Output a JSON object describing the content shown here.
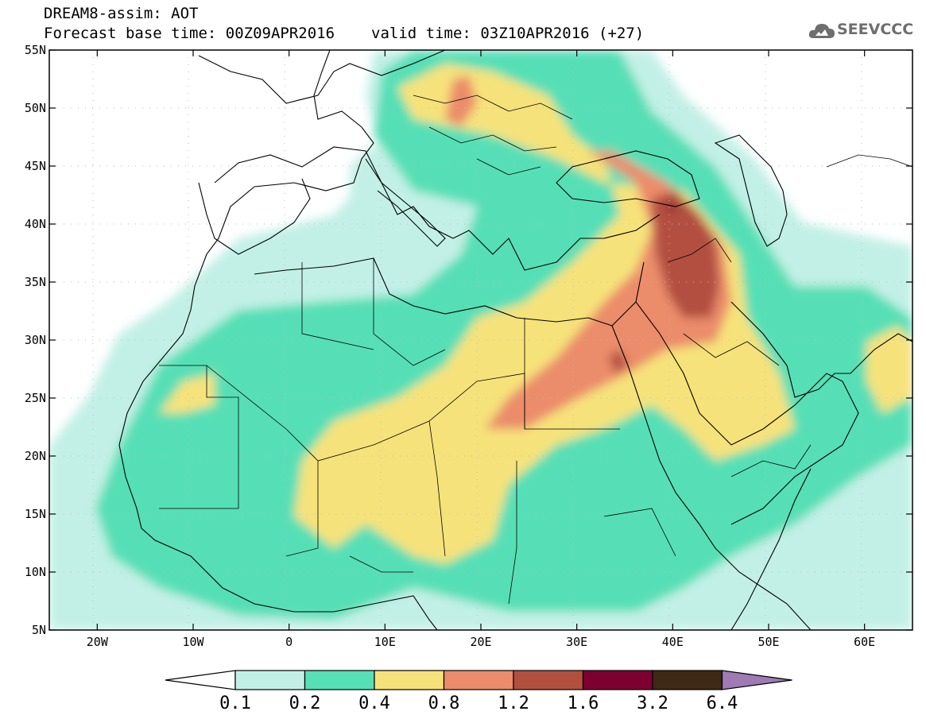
{
  "header": {
    "title": "DREAM8-assim: AOT",
    "base_time": "Forecast base time: 00Z09APR2016",
    "valid_time": "valid time: 03Z10APR2016 (+27)"
  },
  "logo": {
    "text": "SEEVCCC",
    "icon": "cloud-icon"
  },
  "map": {
    "lon_range": [
      -25,
      65
    ],
    "lat_range": [
      5,
      55
    ],
    "lat_ticks": [
      {
        "value": 55,
        "label": "55N"
      },
      {
        "value": 50,
        "label": "50N"
      },
      {
        "value": 45,
        "label": "45N"
      },
      {
        "value": 40,
        "label": "40N"
      },
      {
        "value": 35,
        "label": "35N"
      },
      {
        "value": 30,
        "label": "30N"
      },
      {
        "value": 25,
        "label": "25N"
      },
      {
        "value": 20,
        "label": "20N"
      },
      {
        "value": 15,
        "label": "15N"
      },
      {
        "value": 10,
        "label": "10N"
      },
      {
        "value": 5,
        "label": "5N"
      }
    ],
    "lon_ticks": [
      {
        "value": -20,
        "label": "20W"
      },
      {
        "value": -10,
        "label": "10W"
      },
      {
        "value": 0,
        "label": "0"
      },
      {
        "value": 10,
        "label": "10E"
      },
      {
        "value": 20,
        "label": "20E"
      },
      {
        "value": 30,
        "label": "30E"
      },
      {
        "value": 40,
        "label": "40E"
      },
      {
        "value": 50,
        "label": "50E"
      },
      {
        "value": 60,
        "label": "60E"
      }
    ]
  },
  "colorbar": {
    "levels": [
      "0.1",
      "0.2",
      "0.4",
      "0.8",
      "1.2",
      "1.6",
      "3.2",
      "6.4"
    ],
    "colors": [
      "#ffffff",
      "#c2f0e6",
      "#57dfb6",
      "#f6e27a",
      "#eb8c6a",
      "#b2503f",
      "#7d0030",
      "#3e2a14",
      "#9f7ab3"
    ]
  }
}
